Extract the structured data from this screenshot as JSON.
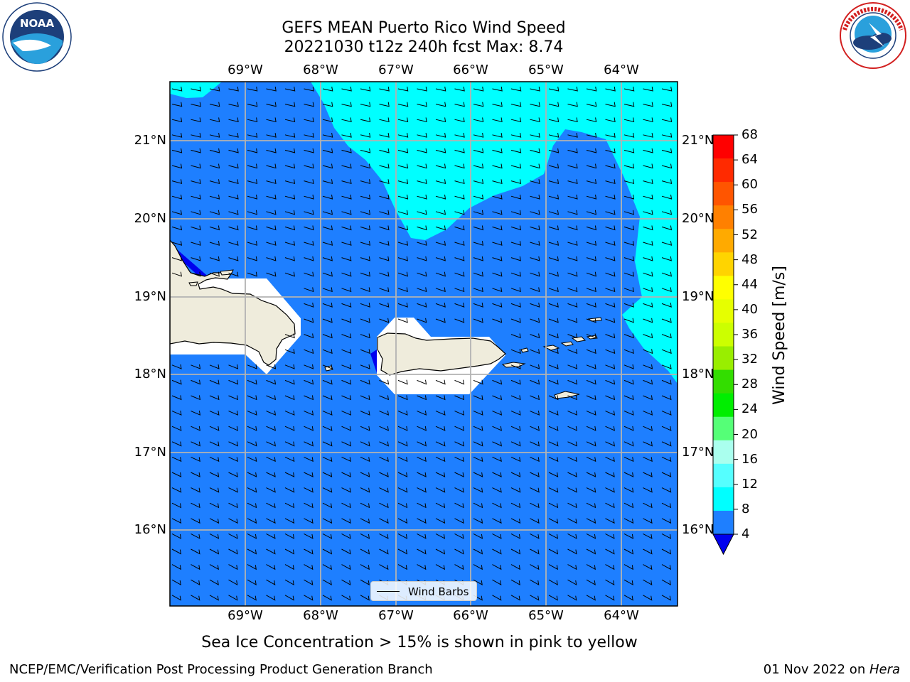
{
  "title_line1": "GEFS MEAN Puerto Rico Wind Speed",
  "title_line2": "20221030 t12z 240h fcst   Max: 8.74",
  "lon_labels": [
    "69°W",
    "68°W",
    "67°W",
    "66°W",
    "65°W",
    "64°W"
  ],
  "lat_labels": [
    "21°N",
    "20°N",
    "19°N",
    "18°N",
    "17°N",
    "16°N"
  ],
  "colorbar": {
    "label": "Wind Speed [m/s]",
    "ticks": [
      "68",
      "64",
      "60",
      "56",
      "52",
      "48",
      "44",
      "40",
      "36",
      "32",
      "28",
      "24",
      "20",
      "16",
      "12",
      "8",
      "4"
    ],
    "colors": [
      "#ff0000",
      "#ff2a00",
      "#ff5500",
      "#ff8000",
      "#ffaa00",
      "#ffd400",
      "#ffff00",
      "#e6ff00",
      "#ccff00",
      "#99ee00",
      "#33dd00",
      "#00ee00",
      "#55ff77",
      "#aaffee",
      "#55ffff",
      "#00ffff",
      "#1e7fff"
    ],
    "underflow_color": "#0000ee"
  },
  "legend_label": "Wind Barbs",
  "caption": "Sea Ice Concentration > 15% is shown in pink to yellow",
  "footer_left": "NCEP/EMC/Verification Post Processing Product Generation Branch",
  "footer_date": "01 Nov 2022 on ",
  "footer_host": "Hera",
  "logos": {
    "left": "NOAA",
    "right": "NATIONAL WEATHER SERVICE"
  },
  "map_colors": {
    "ocean": "#1e7fff",
    "cyan": "#00ffff",
    "land": "#efecdc",
    "grid": "#b3b3b3"
  }
}
